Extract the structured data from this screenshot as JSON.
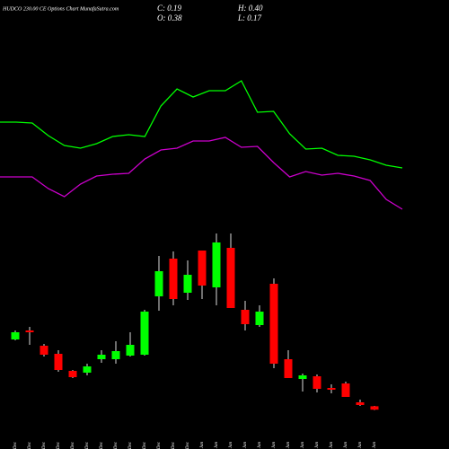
{
  "chart_data": [
    {
      "type": "candlestick",
      "title": "HUDCO 230.00 CE Options  Chart MunafaSutra.com",
      "stats": [
        "C: 0.19",
        "H: 0.40",
        "O: 0.38",
        "L: 0.17"
      ],
      "categories": [
        "12 Dec",
        "13 Dec",
        "16 Dec",
        "17 Dec",
        "18 Dec",
        "19 Dec",
        "20 Dec",
        "23 Dec",
        "24 Dec",
        "26 Dec",
        "27 Dec",
        "30 Dec",
        "31 Dec",
        "01 Jan",
        "02 Jan",
        "03 Jan",
        "06 Jan",
        "07 Jan",
        "08 Jan",
        "09 Jan",
        "10 Jan",
        "13 Jan",
        "14 Jan",
        "15 Jan",
        "16 Jan",
        "20 Jan"
      ],
      "open": [
        4.1,
        4.6,
        3.75,
        3.3,
        2.35,
        2.25,
        3.0,
        3.0,
        3.2,
        3.25,
        6.5,
        8.6,
        6.7,
        9.05,
        7.0,
        9.2,
        5.75,
        4.9,
        7.2,
        3.0,
        1.9,
        2.05,
        1.4,
        1.65,
        0.6,
        0.38
      ],
      "high": [
        4.6,
        4.8,
        3.85,
        3.5,
        2.4,
        2.75,
        3.5,
        4.0,
        4.5,
        5.75,
        8.75,
        9.0,
        8.5,
        9.05,
        10.0,
        10.0,
        6.25,
        6.0,
        7.5,
        3.5,
        2.2,
        2.15,
        1.6,
        1.75,
        0.75,
        0.4
      ],
      "low": [
        4.05,
        3.8,
        3.15,
        2.3,
        1.95,
        2.1,
        2.8,
        2.75,
        3.15,
        3.2,
        5.7,
        6.0,
        6.3,
        6.35,
        6.0,
        5.85,
        4.6,
        4.8,
        2.5,
        1.95,
        1.2,
        1.15,
        1.1,
        0.9,
        0.4,
        0.17
      ],
      "close": [
        4.5,
        4.5,
        3.25,
        2.4,
        2.0,
        2.6,
        3.25,
        3.45,
        3.8,
        5.65,
        7.9,
        6.35,
        7.7,
        7.1,
        9.5,
        5.85,
        4.95,
        5.65,
        2.75,
        1.95,
        2.1,
        1.35,
        1.3,
        0.9,
        0.45,
        0.19
      ],
      "up_color": "#00ff00",
      "down_color": "#ff0000",
      "ylim": [
        0,
        11
      ]
    },
    {
      "type": "line",
      "ylim": [
        0,
        12
      ],
      "series": [
        {
          "color": "#00ff00",
          "values": [
            5.2,
            5.2,
            5.15,
            4.45,
            3.9,
            3.75,
            4.0,
            4.4,
            4.5,
            4.4,
            6.1,
            7.05,
            6.6,
            6.95,
            6.95,
            7.5,
            5.75,
            5.8,
            4.55,
            3.7,
            3.75,
            3.35,
            3.3,
            3.1,
            2.8,
            2.65
          ]
        },
        {
          "color": "#cc00cc",
          "values": [
            2.15,
            2.15,
            2.15,
            1.5,
            1.05,
            1.75,
            2.2,
            2.3,
            2.35,
            3.15,
            3.65,
            3.75,
            4.15,
            4.15,
            4.35,
            3.8,
            3.85,
            2.95,
            2.15,
            2.45,
            2.25,
            2.35,
            2.2,
            1.95,
            0.9,
            0.35
          ]
        }
      ]
    }
  ]
}
